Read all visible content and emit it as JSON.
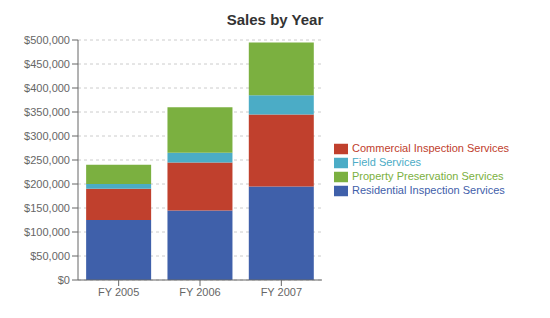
{
  "chart_data": {
    "type": "bar",
    "title": "Sales by Year",
    "categories": [
      "FY 2005",
      "FY 2006",
      "FY 2007"
    ],
    "series": [
      {
        "name": "Residential Inspection Services",
        "color": "#3F60AA",
        "values": [
          125000,
          145000,
          195000
        ]
      },
      {
        "name": "Commercial Inspection Services",
        "color": "#C0402D",
        "values": [
          65000,
          100000,
          150000
        ]
      },
      {
        "name": "Field Services",
        "color": "#4BACC6",
        "values": [
          10000,
          20000,
          40000
        ]
      },
      {
        "name": "Property Preservation Services",
        "color": "#7BB040",
        "values": [
          40000,
          95000,
          110000
        ]
      }
    ],
    "ylim": [
      0,
      500000
    ],
    "yticks": [
      {
        "value": 0,
        "label": "$0"
      },
      {
        "value": 50000,
        "label": "$50,000"
      },
      {
        "value": 100000,
        "label": "$100,000"
      },
      {
        "value": 150000,
        "label": "$150,000"
      },
      {
        "value": 200000,
        "label": "$200,000"
      },
      {
        "value": 250000,
        "label": "$250,000"
      },
      {
        "value": 300000,
        "label": "$300,000"
      },
      {
        "value": 350000,
        "label": "$350,000"
      },
      {
        "value": 400000,
        "label": "$400,000"
      },
      {
        "value": 450000,
        "label": "$450,000"
      },
      {
        "value": 500000,
        "label": "$500,000"
      }
    ],
    "grid": true,
    "stacked": true,
    "legend": "right"
  }
}
